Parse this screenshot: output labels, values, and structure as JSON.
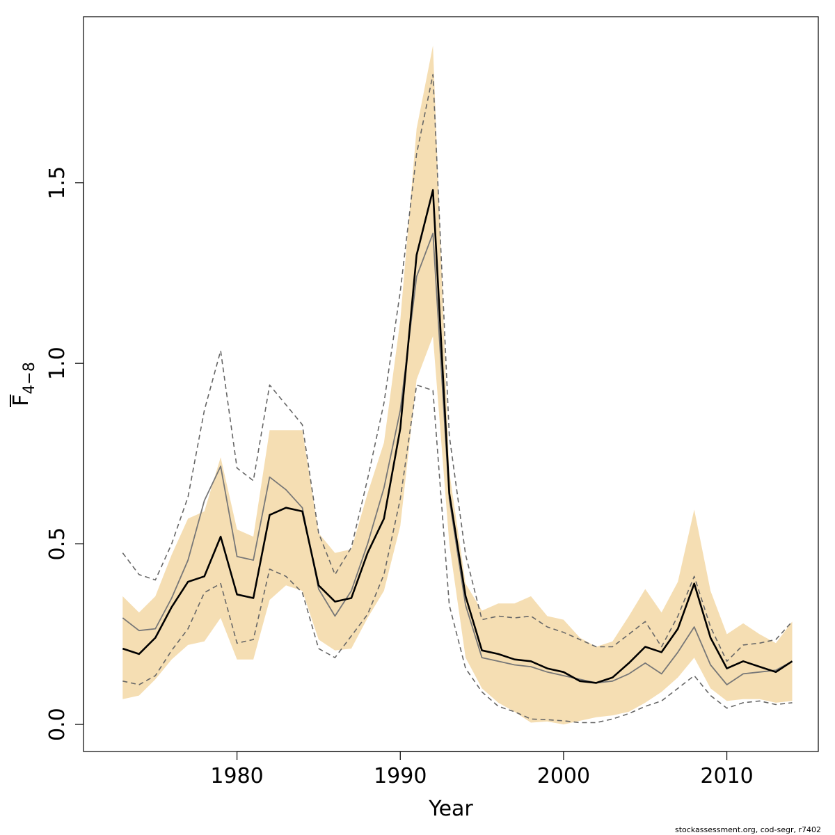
{
  "chart_data": {
    "type": "line",
    "xlabel": "Year",
    "ylabel_main": "F",
    "ylabel_sub": "4−8",
    "xlim": [
      1970.6,
      2015.6
    ],
    "ylim": [
      -0.075,
      1.96
    ],
    "x_ticks": [
      1980,
      1990,
      2000,
      2010
    ],
    "x_tick_labels": [
      "1980",
      "1990",
      "2000",
      "2010"
    ],
    "y_ticks": [
      0.0,
      0.5,
      1.0,
      1.5
    ],
    "y_tick_labels": [
      "0.0",
      "0.5",
      "1.0",
      "1.5"
    ],
    "credit": "stockassessment.org, cod-segr, r7402",
    "colors": {
      "band": "#f5deb3",
      "main_line": "#000000",
      "secondary_line": "#777777",
      "dashed": "#666666"
    },
    "x": [
      1973,
      1974,
      1975,
      1976,
      1977,
      1978,
      1979,
      1980,
      1981,
      1982,
      1983,
      1984,
      1985,
      1986,
      1987,
      1988,
      1989,
      1990,
      1991,
      1992,
      1993,
      1994,
      1995,
      1996,
      1997,
      1998,
      1999,
      2000,
      2001,
      2002,
      2003,
      2004,
      2005,
      2006,
      2007,
      2008,
      2009,
      2010,
      2011,
      2012,
      2013,
      2014
    ],
    "series": [
      {
        "role": "band-upper",
        "values": [
          0.355,
          0.31,
          0.355,
          0.47,
          0.57,
          0.59,
          0.74,
          0.54,
          0.52,
          0.815,
          0.815,
          0.815,
          0.53,
          0.475,
          0.485,
          0.64,
          0.78,
          1.12,
          1.65,
          1.88,
          0.7,
          0.39,
          0.315,
          0.335,
          0.335,
          0.355,
          0.3,
          0.29,
          0.24,
          0.215,
          0.23,
          0.3,
          0.375,
          0.31,
          0.395,
          0.595,
          0.37,
          0.25,
          0.28,
          0.25,
          0.225,
          0.285
        ]
      },
      {
        "role": "band-lower",
        "values": [
          0.07,
          0.08,
          0.125,
          0.18,
          0.22,
          0.23,
          0.295,
          0.18,
          0.18,
          0.345,
          0.385,
          0.37,
          0.235,
          0.205,
          0.21,
          0.295,
          0.37,
          0.55,
          0.955,
          1.075,
          0.5,
          0.185,
          0.1,
          0.06,
          0.035,
          0.005,
          0.008,
          0.0,
          0.01,
          0.02,
          0.025,
          0.035,
          0.06,
          0.09,
          0.13,
          0.185,
          0.1,
          0.065,
          0.07,
          0.07,
          0.06,
          0.065
        ]
      },
      {
        "role": "main",
        "values": [
          0.21,
          0.195,
          0.24,
          0.325,
          0.395,
          0.41,
          0.52,
          0.36,
          0.35,
          0.58,
          0.6,
          0.59,
          0.385,
          0.34,
          0.35,
          0.475,
          0.57,
          0.82,
          1.3,
          1.48,
          0.64,
          0.355,
          0.205,
          0.195,
          0.18,
          0.175,
          0.155,
          0.145,
          0.12,
          0.115,
          0.13,
          0.17,
          0.215,
          0.2,
          0.265,
          0.39,
          0.24,
          0.155,
          0.175,
          0.16,
          0.145,
          0.175
        ]
      },
      {
        "role": "secondary",
        "values": [
          0.295,
          0.26,
          0.265,
          0.35,
          0.455,
          0.62,
          0.715,
          0.465,
          0.455,
          0.685,
          0.65,
          0.6,
          0.375,
          0.3,
          0.37,
          0.5,
          0.655,
          0.87,
          1.24,
          1.36,
          0.625,
          0.33,
          0.185,
          0.175,
          0.165,
          0.16,
          0.145,
          0.135,
          0.125,
          0.115,
          0.12,
          0.14,
          0.17,
          0.14,
          0.2,
          0.27,
          0.165,
          0.11,
          0.14,
          0.145,
          0.15,
          0.175
        ]
      },
      {
        "role": "dashed-upper",
        "values": [
          0.475,
          0.415,
          0.4,
          0.5,
          0.63,
          0.87,
          1.035,
          0.71,
          0.675,
          0.94,
          0.885,
          0.83,
          0.53,
          0.415,
          0.49,
          0.68,
          0.89,
          1.2,
          1.58,
          1.8,
          0.8,
          0.47,
          0.29,
          0.3,
          0.295,
          0.3,
          0.27,
          0.255,
          0.235,
          0.215,
          0.215,
          0.25,
          0.285,
          0.215,
          0.3,
          0.41,
          0.27,
          0.175,
          0.22,
          0.225,
          0.235,
          0.285
        ]
      },
      {
        "role": "dashed-lower",
        "values": [
          0.12,
          0.11,
          0.135,
          0.205,
          0.265,
          0.365,
          0.39,
          0.225,
          0.235,
          0.43,
          0.41,
          0.365,
          0.21,
          0.185,
          0.245,
          0.305,
          0.415,
          0.625,
          0.94,
          0.925,
          0.33,
          0.155,
          0.09,
          0.05,
          0.035,
          0.015,
          0.013,
          0.01,
          0.005,
          0.005,
          0.015,
          0.03,
          0.05,
          0.065,
          0.1,
          0.135,
          0.08,
          0.045,
          0.06,
          0.065,
          0.055,
          0.06
        ]
      }
    ]
  }
}
